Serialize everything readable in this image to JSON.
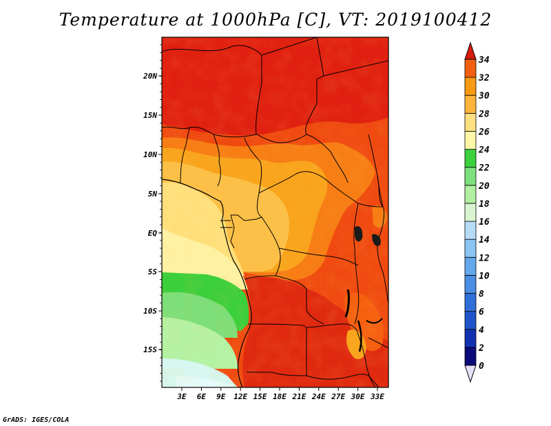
{
  "title": "Temperature at 1000hPa [C], VT: 2019100412",
  "credit": "GrADS: IGES/COLA",
  "map": {
    "lat_labels": [
      "20N",
      "15N",
      "10N",
      "5N",
      "EQ",
      "5S",
      "10S",
      "15S"
    ],
    "lon_labels": [
      "3E",
      "6E",
      "9E",
      "12E",
      "15E",
      "18E",
      "21E",
      "24E",
      "27E",
      "30E",
      "33E"
    ]
  },
  "colorbar": {
    "labels": [
      "0",
      "2",
      "4",
      "6",
      "8",
      "10",
      "12",
      "14",
      "16",
      "18",
      "20",
      "22",
      "24",
      "26",
      "28",
      "30",
      "32",
      "34"
    ],
    "colors": [
      "#0a0a7a",
      "#1131b0",
      "#1f55c8",
      "#2f6fd9",
      "#4a8ee5",
      "#64a8ec",
      "#8ac4f2",
      "#b6dbf7",
      "#d8f5d0",
      "#b0f0a0",
      "#7ee07c",
      "#3cd03c",
      "#fff6a8",
      "#ffe080",
      "#fcb43c",
      "#f99a14",
      "#f06010",
      "#e02a10",
      "#d81c0c"
    ],
    "min_color": "#e6e1f7"
  }
}
